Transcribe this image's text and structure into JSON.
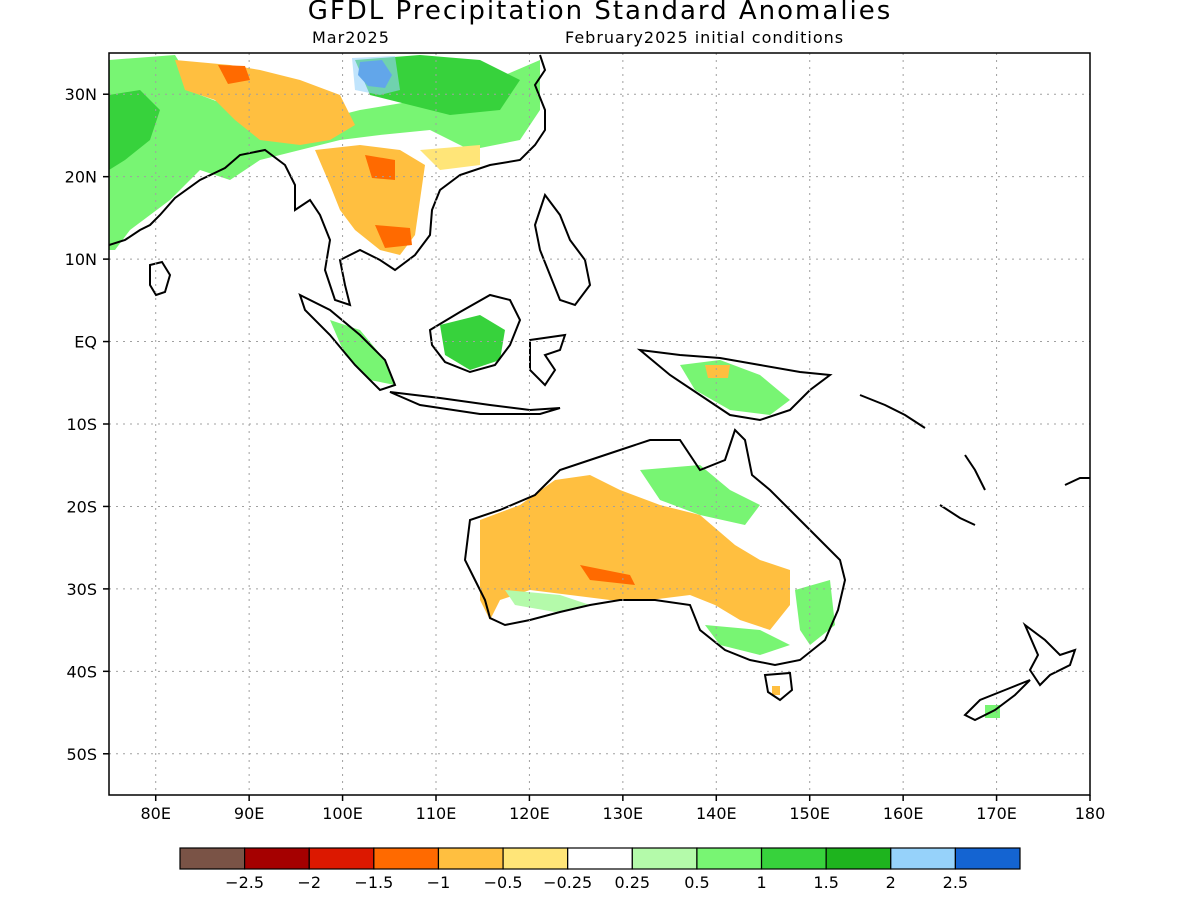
{
  "title": "GFDL Precipitation Standard Anomalies",
  "subtitle_left": "Mar2025",
  "subtitle_right": "February2025 initial conditions",
  "map": {
    "lon_range": [
      75,
      180
    ],
    "lat_range": [
      -55,
      35
    ],
    "lon_ticks": [
      {
        "lon": 80,
        "label": "80E"
      },
      {
        "lon": 90,
        "label": "90E"
      },
      {
        "lon": 100,
        "label": "100E"
      },
      {
        "lon": 110,
        "label": "110E"
      },
      {
        "lon": 120,
        "label": "120E"
      },
      {
        "lon": 130,
        "label": "130E"
      },
      {
        "lon": 140,
        "label": "140E"
      },
      {
        "lon": 150,
        "label": "150E"
      },
      {
        "lon": 160,
        "label": "160E"
      },
      {
        "lon": 170,
        "label": "170E"
      },
      {
        "lon": 180,
        "label": "180"
      }
    ],
    "lat_ticks": [
      {
        "lat": 30,
        "label": "30N"
      },
      {
        "lat": 20,
        "label": "20N"
      },
      {
        "lat": 10,
        "label": "10N"
      },
      {
        "lat": 0,
        "label": "EQ"
      },
      {
        "lat": -10,
        "label": "10S"
      },
      {
        "lat": -20,
        "label": "20S"
      },
      {
        "lat": -30,
        "label": "30S"
      },
      {
        "lat": -40,
        "label": "40S"
      },
      {
        "lat": -50,
        "label": "50S"
      }
    ],
    "grid": "dotted"
  },
  "colorbar": {
    "colors": [
      "#7a5346",
      "#a50000",
      "#dc1800",
      "#ff6a00",
      "#ffbf40",
      "#ffe578",
      "#ffffff",
      "#b4faaa",
      "#78f573",
      "#37d23c",
      "#1eb41e",
      "#96d2fa",
      "#1464d2"
    ],
    "labels": [
      "−2.5",
      "−2",
      "−1.5",
      "−1",
      "−0.5",
      "−0.25",
      "0.25",
      "0.5",
      "1",
      "1.5",
      "2",
      "2.5"
    ]
  },
  "colors": {
    "coast": "#000000",
    "grid": "#a0a0a0"
  }
}
